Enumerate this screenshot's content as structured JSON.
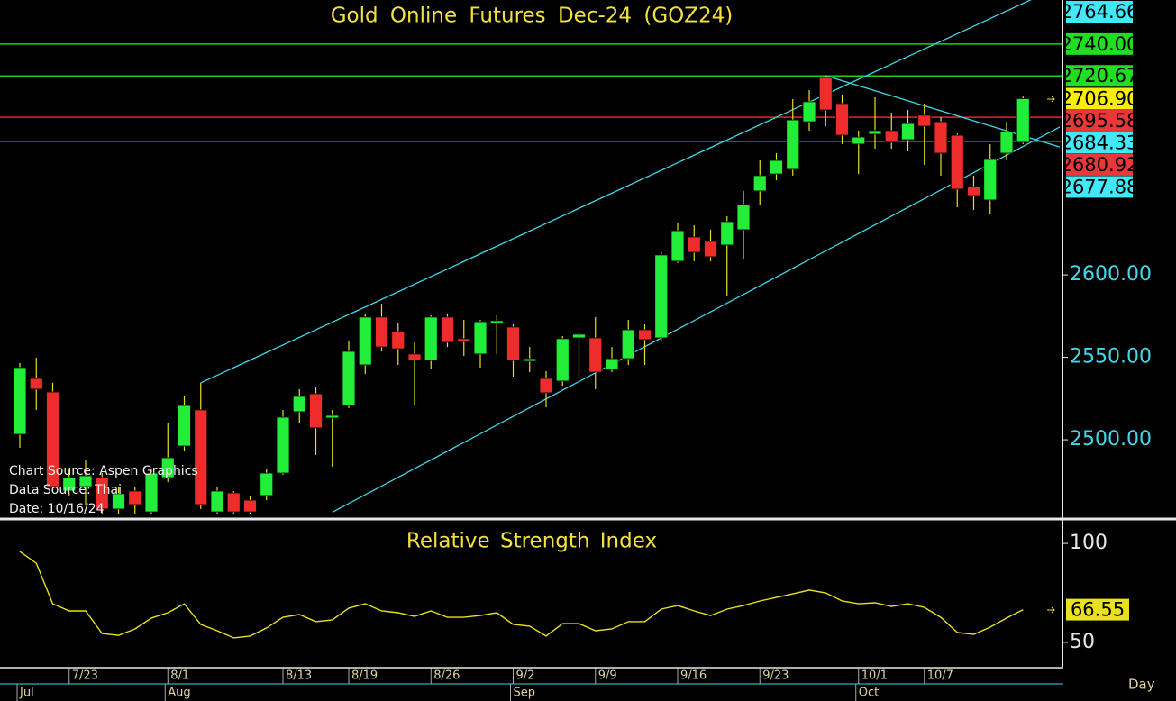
{
  "chart_data": [
    {
      "type": "candlestick",
      "title": "Gold Online Futures Dec-24 (GOZ24)",
      "annotations": [
        "Chart Source: Aspen Graphics",
        "Data Source: Thai",
        "Date: 10/16/24"
      ],
      "x_unit": "Day",
      "categories": [
        null,
        null,
        null,
        "7/23",
        null,
        null,
        null,
        null,
        null,
        "8/1",
        null,
        null,
        null,
        null,
        null,
        null,
        "8/13",
        null,
        null,
        null,
        "8/19",
        null,
        null,
        null,
        null,
        "8/26",
        null,
        null,
        null,
        null,
        "9/2",
        null,
        null,
        null,
        null,
        "9/9",
        null,
        null,
        null,
        null,
        "9/16",
        null,
        null,
        null,
        null,
        "9/23",
        null,
        null,
        null,
        null,
        null,
        "10/1",
        null,
        null,
        null,
        "10/7",
        null,
        null,
        null,
        null,
        null,
        null
      ],
      "month_labels": [
        "Jul",
        null,
        null,
        null,
        null,
        null,
        null,
        null,
        null,
        "Aug",
        null,
        null,
        null,
        null,
        null,
        null,
        null,
        null,
        null,
        null,
        null,
        null,
        null,
        null,
        null,
        null,
        null,
        null,
        null,
        null,
        "Sep",
        null,
        null,
        null,
        null,
        null,
        null,
        null,
        null,
        null,
        null,
        null,
        null,
        null,
        null,
        null,
        null,
        null,
        null,
        null,
        null,
        "Oct",
        null,
        null,
        null,
        null,
        null,
        null,
        null,
        null,
        null,
        null
      ],
      "open": [
        2503.3,
        2537.2,
        2529.0,
        2468.9,
        2471.6,
        2477.1,
        2458.0,
        2468.9,
        2456.3,
        2477.1,
        2496.2,
        2518.1,
        2456.3,
        2467.8,
        2463.4,
        2466.2,
        2479.8,
        2517.0,
        2527.9,
        2513.2,
        2520.8,
        2545.4,
        2574.4,
        2565.6,
        2552.0,
        2548.1,
        2574.4,
        2561.3,
        2552.0,
        2570.5,
        2568.4,
        2547.6,
        2537.2,
        2535.6,
        2561.8,
        2561.8,
        2542.7,
        2549.2,
        2566.7,
        2561.8,
        2608.3,
        2623.0,
        2620.3,
        2618.1,
        2627.4,
        2650.9,
        2661.2,
        2664.0,
        2692.9,
        2719.7,
        2703.9,
        2679.3,
        2685.3,
        2687.5,
        2682.0,
        2696.8,
        2692.9,
        2684.7,
        2653.6,
        2645.4,
        2673.8,
        2680.4
      ],
      "high": [
        2546.5,
        2549.8,
        2534.5,
        2482.6,
        2488.0,
        2479.8,
        2471.6,
        2471.6,
        2482.6,
        2509.9,
        2526.3,
        2534.5,
        2471.6,
        2468.9,
        2466.2,
        2482.6,
        2518.1,
        2530.7,
        2531.8,
        2518.1,
        2560.2,
        2576.6,
        2582.5,
        2571.1,
        2559.1,
        2575.5,
        2576.6,
        2572.7,
        2572.7,
        2575.5,
        2570.0,
        2556.3,
        2541.6,
        2562.9,
        2565.6,
        2574.4,
        2556.3,
        2572.7,
        2570.0,
        2613.7,
        2631.2,
        2630.1,
        2627.4,
        2635.6,
        2650.9,
        2669.4,
        2673.8,
        2706.6,
        2712.1,
        2720.8,
        2709.3,
        2687.5,
        2707.7,
        2698.4,
        2700.0,
        2703.9,
        2695.7,
        2685.8,
        2660.2,
        2679.3,
        2692.9,
        2708.2
      ],
      "low": [
        2495.1,
        2518.1,
        2468.9,
        2466.2,
        2460.7,
        2455.2,
        2455.2,
        2455.2,
        2455.2,
        2474.4,
        2493.5,
        2458.0,
        2455.2,
        2455.2,
        2455.2,
        2463.4,
        2478.8,
        2509.9,
        2490.8,
        2483.7,
        2519.2,
        2539.9,
        2553.6,
        2545.4,
        2520.8,
        2542.7,
        2556.3,
        2550.9,
        2543.8,
        2552.0,
        2538.3,
        2541.0,
        2519.7,
        2532.8,
        2537.2,
        2530.7,
        2541.0,
        2545.4,
        2545.4,
        2560.2,
        2607.2,
        2608.3,
        2608.3,
        2587.5,
        2609.4,
        2642.1,
        2657.4,
        2660.2,
        2687.5,
        2690.2,
        2679.3,
        2661.2,
        2676.5,
        2676.5,
        2674.9,
        2666.7,
        2660.2,
        2641.0,
        2639.4,
        2637.2,
        2669.4,
        2679.3
      ],
      "close": [
        2543.8,
        2530.7,
        2471.6,
        2477.1,
        2478.2,
        2458.0,
        2467.3,
        2460.7,
        2479.8,
        2489.1,
        2520.8,
        2460.7,
        2468.9,
        2456.3,
        2456.3,
        2479.8,
        2513.7,
        2526.3,
        2507.2,
        2514.8,
        2553.6,
        2574.4,
        2556.3,
        2555.2,
        2548.1,
        2574.4,
        2559.1,
        2559.6,
        2571.6,
        2572.2,
        2548.1,
        2549.2,
        2528.5,
        2561.3,
        2564.0,
        2541.0,
        2549.2,
        2566.7,
        2560.7,
        2612.1,
        2626.8,
        2613.7,
        2611.0,
        2632.3,
        2642.7,
        2660.2,
        2669.4,
        2694.0,
        2705.0,
        2700.0,
        2684.7,
        2683.6,
        2687.5,
        2680.4,
        2691.8,
        2690.2,
        2673.8,
        2652.0,
        2648.1,
        2670.0,
        2686.9,
        2706.9
      ],
      "up_color": "#22ee3a",
      "down_color": "#ee2c2c",
      "wick_color": "#e8e020",
      "ylim": [
        2453.6,
        2766.7
      ],
      "yticks": [
        {
          "value": 2500,
          "label": "2500.00"
        },
        {
          "value": 2550,
          "label": "2550.00"
        },
        {
          "value": 2600,
          "label": "2600.00"
        }
      ],
      "hlines": [
        {
          "value": 2740,
          "color": "#22cc22"
        },
        {
          "value": 2720.67,
          "color": "#22cc22"
        },
        {
          "value": 2695.58,
          "color": "#e02828"
        },
        {
          "value": 2680.92,
          "color": "#e02828"
        }
      ],
      "trendlines": [
        {
          "x": [
            11,
            61
          ],
          "y": [
            2534.5,
            2764.66
          ],
          "color": "#40d8e8"
        },
        {
          "x": [
            19,
            61
          ],
          "y": [
            2456.1,
            2677.88
          ],
          "color": "#40d8e8"
        },
        {
          "x": [
            49,
            61
          ],
          "y": [
            2720.8,
            2684.33
          ],
          "color": "#40d8e8"
        }
      ],
      "price_labels": [
        {
          "value": 2764.66,
          "label": "2764.66",
          "color": "#40e8f8"
        },
        {
          "value": 2740,
          "label": "2740.00",
          "color": "#22dd22"
        },
        {
          "value": 2720.67,
          "label": "2720.67",
          "color": "#22dd22"
        },
        {
          "value": 2706.9,
          "label": "2706.90",
          "color": "#f8f000"
        },
        {
          "value": 2695.58,
          "label": "2695.58",
          "color": "#e83838"
        },
        {
          "value": 2684.33,
          "label": "2684.33",
          "color": "#40e8f8"
        },
        {
          "value": 2680.92,
          "label": "2680.92",
          "color": "#e83838"
        },
        {
          "value": 2677.88,
          "label": "2677.88",
          "color": "#40e8f8"
        }
      ]
    },
    {
      "type": "line",
      "title": "Relative Strength Index",
      "color": "#e8e020",
      "values": [
        95.9,
        90,
        69.5,
        65.9,
        65.9,
        54.5,
        53.6,
        56.8,
        62.3,
        65,
        69.5,
        59.1,
        55.9,
        52.3,
        53.2,
        57.3,
        62.7,
        64.1,
        60.5,
        61.4,
        67.3,
        69.5,
        65.9,
        65,
        63.2,
        65.9,
        62.7,
        62.7,
        63.6,
        65,
        59.1,
        58.2,
        53.2,
        59.5,
        59.5,
        55.9,
        56.8,
        60.5,
        60.5,
        66.8,
        68.6,
        65.9,
        63.6,
        66.8,
        68.6,
        70.9,
        72.7,
        74.5,
        76.4,
        75,
        70.9,
        69.5,
        70,
        68.2,
        69.5,
        67.7,
        62.7,
        55,
        54.1,
        57.7,
        62.3,
        66.55
      ],
      "ylim": [
        37.7,
        110.5
      ],
      "yticks": [
        100,
        50
      ]
    }
  ]
}
